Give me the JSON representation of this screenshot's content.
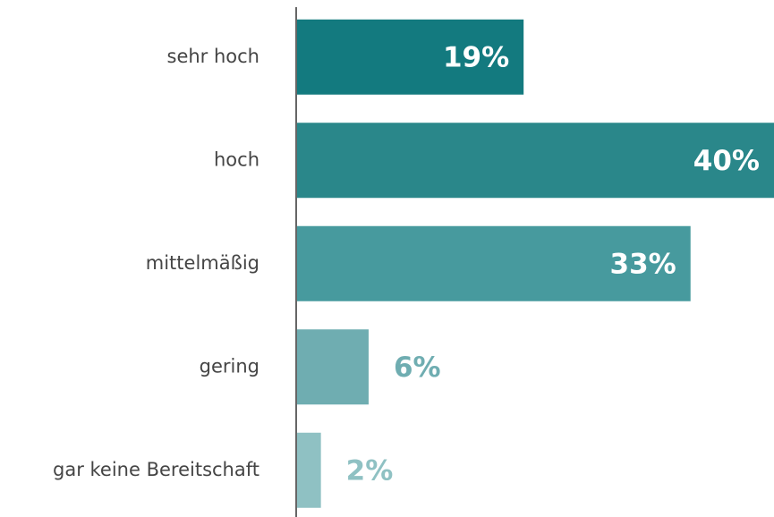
{
  "chart_data": {
    "type": "bar",
    "orientation": "horizontal",
    "categories": [
      "sehr hoch",
      "hoch",
      "mittelmäßig",
      "gering",
      "gar keine Bereitschaft"
    ],
    "values": [
      19,
      40,
      33,
      6,
      2
    ],
    "value_labels": [
      "19%",
      "40%",
      "33%",
      "6%",
      "2%"
    ],
    "colors": [
      "#137a7f",
      "#2a878a",
      "#479a9e",
      "#6fadb1",
      "#8fc1c3"
    ]
  }
}
